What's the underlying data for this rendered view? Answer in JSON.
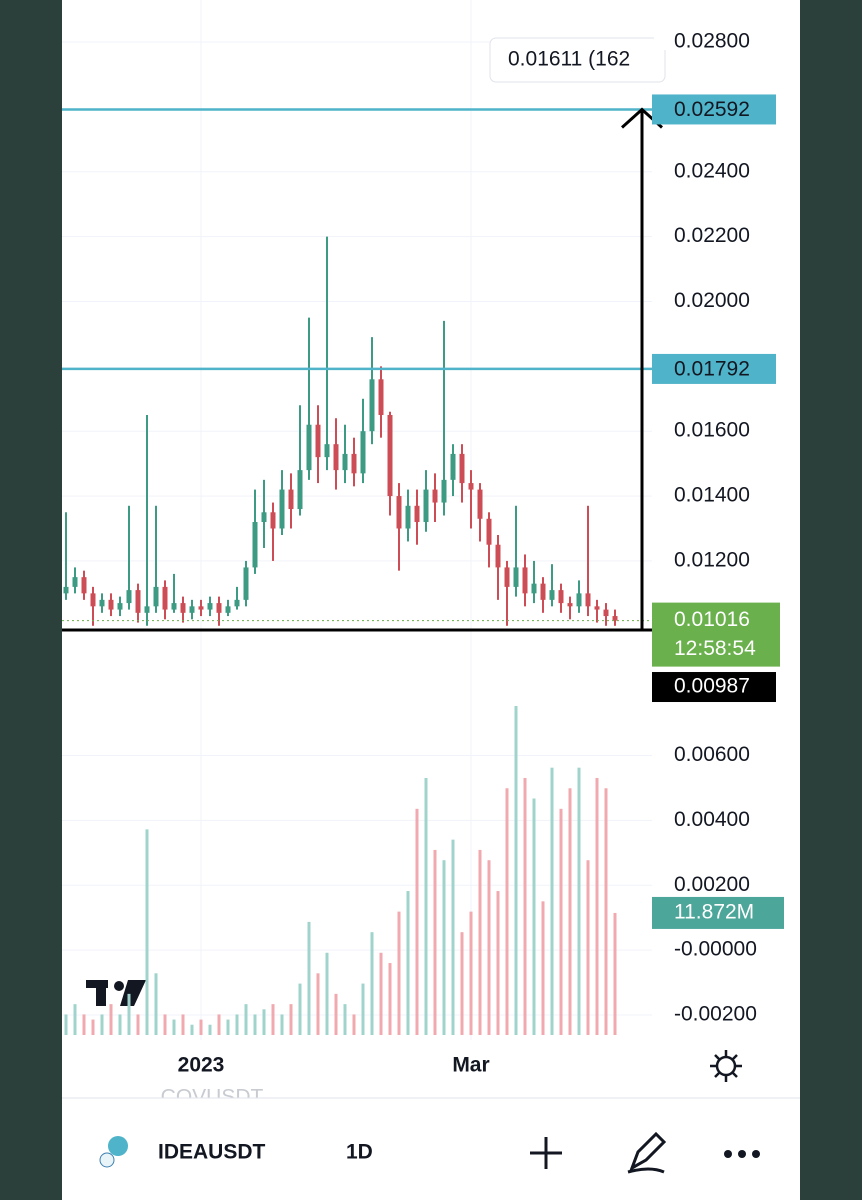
{
  "chart_data": {
    "type": "candlestick",
    "ylim": [
      -0.002,
      0.028
    ],
    "yticks": [
      {
        "value": 0.028,
        "label": "0.02800"
      },
      {
        "value": 0.024,
        "label": "0.02400"
      },
      {
        "value": 0.022,
        "label": "0.02200"
      },
      {
        "value": 0.02,
        "label": "0.02000"
      },
      {
        "value": 0.016,
        "label": "0.01600"
      },
      {
        "value": 0.014,
        "label": "0.01400"
      },
      {
        "value": 0.012,
        "label": "0.01200"
      },
      {
        "value": 0.006,
        "label": "0.00600"
      },
      {
        "value": 0.004,
        "label": "0.00400"
      },
      {
        "value": 0.002,
        "label": "0.00200"
      },
      {
        "value": 0,
        "label": "-0.00000"
      },
      {
        "value": -0.002,
        "label": "-0.00200"
      }
    ],
    "grid": true,
    "up_color": "#3d9a83",
    "down_color": "#cc4d55",
    "categories": [
      null,
      null,
      null,
      null,
      null,
      null,
      null,
      null,
      null,
      null,
      null,
      null,
      null,
      null,
      null,
      "2023",
      null,
      null,
      null,
      null,
      null,
      null,
      null,
      null,
      null,
      null,
      null,
      null,
      null,
      null,
      null,
      null,
      null,
      null,
      null,
      null,
      null,
      null,
      null,
      null,
      null,
      null,
      null,
      null,
      null,
      "Mar",
      null,
      null,
      null,
      null,
      null,
      null,
      null,
      null,
      null,
      null,
      null,
      null,
      null,
      null,
      null,
      null
    ],
    "open": [
      0.011,
      0.0112,
      0.0115,
      0.011,
      0.0106,
      0.0108,
      0.0105,
      0.0107,
      0.0111,
      0.0104,
      0.0106,
      0.0112,
      0.0105,
      0.0107,
      0.0104,
      0.0106,
      0.0105,
      0.0107,
      0.0104,
      0.0106,
      0.0108,
      0.0118,
      0.0132,
      0.0135,
      0.013,
      0.0142,
      0.0136,
      0.0148,
      0.0162,
      0.0152,
      0.0156,
      0.0148,
      0.0153,
      0.0147,
      0.016,
      0.0176,
      0.0165,
      0.014,
      0.013,
      0.0137,
      0.0132,
      0.0142,
      0.0138,
      0.0145,
      0.0153,
      0.0144,
      0.0142,
      0.0133,
      0.0125,
      0.0118,
      0.0112,
      0.0118,
      0.011,
      0.0113,
      0.0108,
      0.0111,
      0.0107,
      0.0106,
      0.011,
      0.0106,
      0.0105,
      0.0103
    ],
    "high": [
      0.0135,
      0.0118,
      0.0117,
      0.0112,
      0.011,
      0.011,
      0.0109,
      0.0137,
      0.0113,
      0.0165,
      0.0137,
      0.0114,
      0.0116,
      0.0109,
      0.0108,
      0.0108,
      0.0109,
      0.0109,
      0.0108,
      0.0112,
      0.012,
      0.0142,
      0.0145,
      0.0138,
      0.0148,
      0.0147,
      0.0168,
      0.0195,
      0.0168,
      0.022,
      0.0164,
      0.0162,
      0.0158,
      0.017,
      0.0189,
      0.018,
      0.0166,
      0.0144,
      0.0142,
      0.0142,
      0.0148,
      0.0147,
      0.0194,
      0.0156,
      0.0156,
      0.0148,
      0.0144,
      0.0135,
      0.0128,
      0.012,
      0.0137,
      0.0122,
      0.012,
      0.0115,
      0.0119,
      0.0113,
      0.0109,
      0.0114,
      0.0137,
      0.0108,
      0.0107,
      0.0105
    ],
    "low": [
      0.0108,
      0.011,
      0.0108,
      0.01,
      0.0104,
      0.0103,
      0.0103,
      0.0105,
      0.0101,
      0.01,
      0.0104,
      0.0102,
      0.0104,
      0.0101,
      0.0102,
      0.0103,
      0.0103,
      0.01,
      0.0103,
      0.0105,
      0.0106,
      0.0116,
      0.0124,
      0.012,
      0.0128,
      0.013,
      0.0134,
      0.0145,
      0.0144,
      0.0148,
      0.0142,
      0.0144,
      0.0143,
      0.0144,
      0.0156,
      0.0158,
      0.0134,
      0.0117,
      0.0126,
      0.0125,
      0.0129,
      0.0132,
      0.0134,
      0.014,
      0.0138,
      0.013,
      0.0126,
      0.0118,
      0.0108,
      0.01,
      0.0109,
      0.0106,
      0.0107,
      0.0104,
      0.0106,
      0.0104,
      0.0102,
      0.0104,
      0.0103,
      0.0101,
      0.01,
      0.01
    ],
    "close": [
      0.0112,
      0.0115,
      0.011,
      0.0106,
      0.0108,
      0.0105,
      0.0107,
      0.0111,
      0.0104,
      0.0106,
      0.0112,
      0.0105,
      0.0107,
      0.0104,
      0.0106,
      0.0105,
      0.0107,
      0.0104,
      0.0106,
      0.0108,
      0.0118,
      0.0132,
      0.0135,
      0.013,
      0.0142,
      0.0136,
      0.0148,
      0.0162,
      0.0152,
      0.0156,
      0.0148,
      0.0153,
      0.0147,
      0.016,
      0.0176,
      0.0165,
      0.014,
      0.013,
      0.0137,
      0.0132,
      0.0142,
      0.0138,
      0.0145,
      0.0153,
      0.0144,
      0.0142,
      0.0133,
      0.0125,
      0.0118,
      0.0112,
      0.0118,
      0.011,
      0.0113,
      0.0108,
      0.0111,
      0.0107,
      0.0106,
      0.011,
      0.0106,
      0.0105,
      0.0103,
      0.01016
    ],
    "volume": [
      2,
      3,
      2,
      1.5,
      2,
      3,
      2,
      4,
      2,
      20,
      6,
      2,
      1.5,
      2,
      1,
      1.5,
      1,
      2,
      1.5,
      2,
      3,
      2,
      2.5,
      3,
      2,
      3,
      5,
      11,
      6,
      8,
      4,
      3,
      2,
      5,
      10,
      8,
      7,
      12,
      14,
      22,
      25,
      18,
      17,
      19,
      10,
      12,
      18,
      17,
      14,
      24,
      32,
      25,
      23,
      13,
      26,
      22,
      24,
      26,
      17,
      25,
      24,
      11.872
    ],
    "volume_label": "11.872M",
    "levels": [
      {
        "value": 0.02592,
        "color": "#4fb3c9"
      },
      {
        "value": 0.01792,
        "color": "#4fb3c9"
      },
      {
        "value": 0.00987,
        "color": "#000000"
      }
    ],
    "last_price": 0.01016,
    "last_color": "#6ab04c",
    "countdown": "12:58:54",
    "measure_label": "0.01611 (162"
  },
  "ui": {
    "ghost_symbol": "COVUSDT",
    "symbol": "IDEAUSDT",
    "interval": "1D"
  }
}
